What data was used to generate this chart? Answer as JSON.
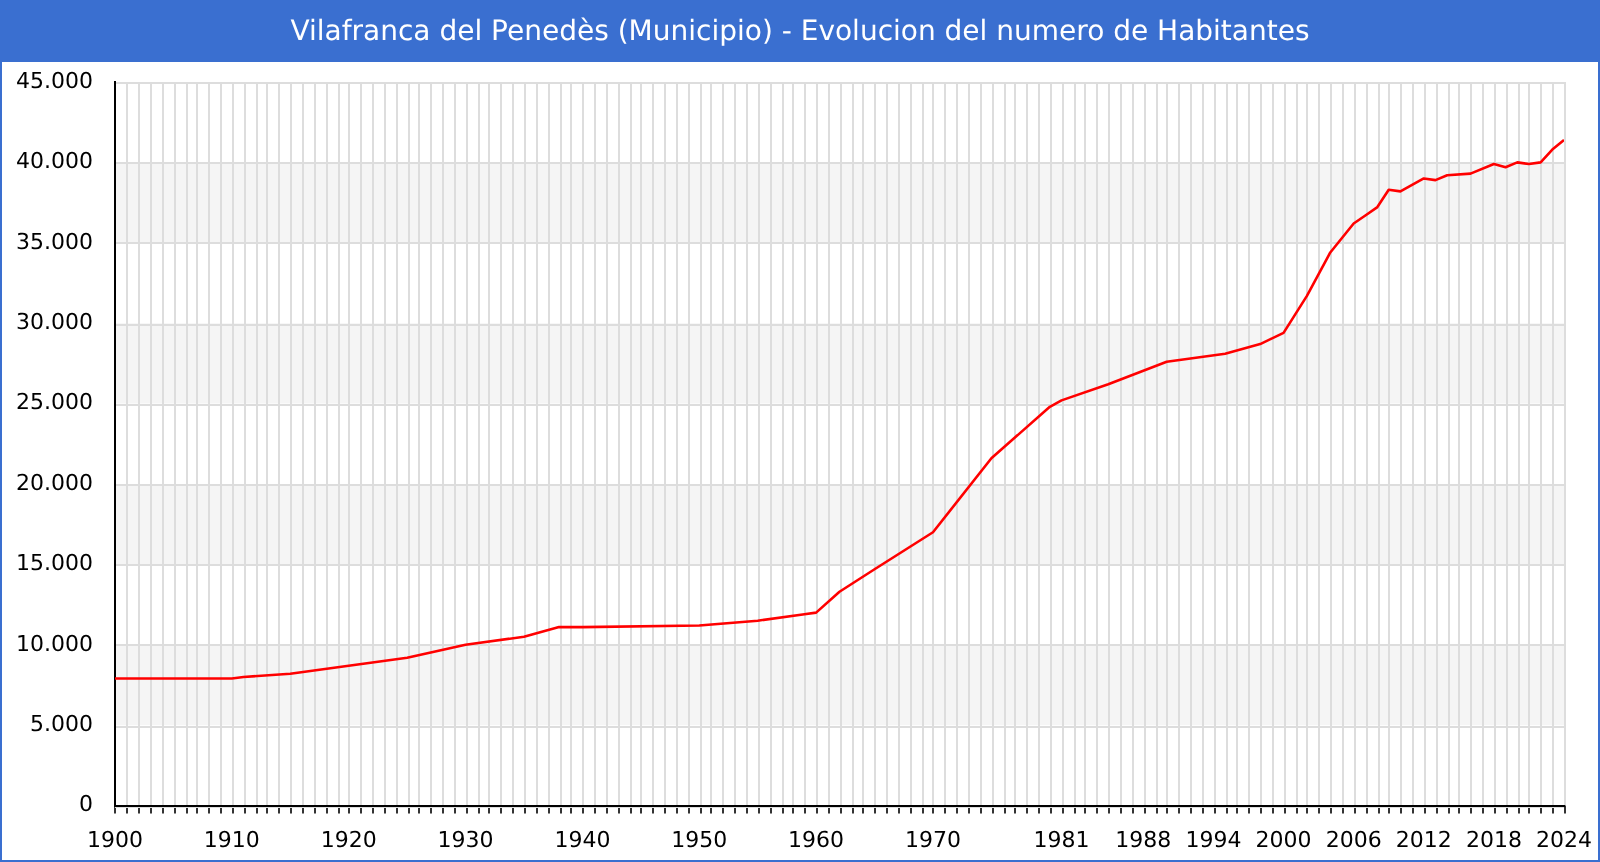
{
  "chart_data": {
    "type": "line",
    "title": "Vilafranca del Penedès (Municipio) - Evolucion del numero de Habitantes",
    "series": [
      {
        "color": "#ff0000",
        "x": [
          1900,
          1910,
          1911,
          1915,
          1920,
          1925,
          1930,
          1935,
          1938,
          1940,
          1950,
          1955,
          1959,
          1960,
          1962,
          1965,
          1970,
          1975,
          1980,
          1981,
          1985,
          1990,
          1995,
          1998,
          2000,
          2002,
          2004,
          2006,
          2007,
          2008,
          2009,
          2010,
          2011,
          2012,
          2013,
          2014,
          2016,
          2018,
          2019,
          2020,
          2021,
          2022,
          2023,
          2024
        ],
        "values": [
          7900,
          7900,
          8000,
          8200,
          8700,
          9200,
          10000,
          10500,
          11100,
          11100,
          11200,
          11500,
          11900,
          12000,
          13300,
          14700,
          17000,
          21600,
          24800,
          25200,
          26200,
          27600,
          28100,
          28700,
          29400,
          31700,
          34400,
          36200,
          36700,
          37200,
          38300,
          38200,
          38600,
          39000,
          38900,
          39200,
          39300,
          39900,
          39700,
          40000,
          39900,
          40000,
          40800,
          41400
        ]
      }
    ],
    "xlim": [
      1900,
      2024
    ],
    "xticks": [
      1900,
      1910,
      1920,
      1930,
      1940,
      1950,
      1960,
      1970,
      1981,
      1988,
      1994,
      2000,
      2006,
      2012,
      2018,
      2024
    ],
    "ylim": [
      0,
      45000
    ],
    "yticks": [
      {
        "value": 0,
        "label": "0"
      },
      {
        "value": 5000,
        "label": "5.000"
      },
      {
        "value": 10000,
        "label": "10.000"
      },
      {
        "value": 15000,
        "label": "15.000"
      },
      {
        "value": 20000,
        "label": "20.000"
      },
      {
        "value": 25000,
        "label": "25.000"
      },
      {
        "value": 30000,
        "label": "30.000"
      },
      {
        "value": 35000,
        "label": "35.000"
      },
      {
        "value": 40000,
        "label": "40.000"
      },
      {
        "value": 45000,
        "label": "45.000"
      }
    ],
    "grid": true,
    "marker": "none",
    "line_style": "solid"
  }
}
